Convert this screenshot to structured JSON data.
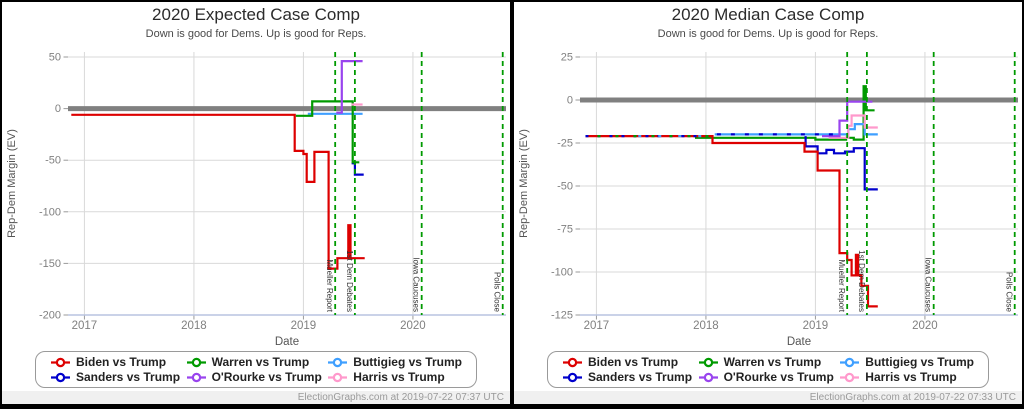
{
  "legend": {
    "items": [
      {
        "label": "Biden vs Trump",
        "color": "#dd0000"
      },
      {
        "label": "Sanders vs Trump",
        "color": "#0000cc"
      },
      {
        "label": "Warren vs Trump",
        "color": "#009a00"
      },
      {
        "label": "O'Rourke vs Trump",
        "color": "#9944ee"
      },
      {
        "label": "Buttigieg vs Trump",
        "color": "#3f9fff"
      },
      {
        "label": "Harris vs Trump",
        "color": "#ff99cc"
      }
    ]
  },
  "colors": {
    "event_line": "#009a00",
    "zero_line": "#808080",
    "grid": "#d9d9d9",
    "axis_line": "#b9c4e0",
    "tick_text": "#808080",
    "axis_title_text": "#555555",
    "event_label_text": "#333333"
  },
  "events": [
    {
      "t": 2019.29,
      "label": "Mueller Report"
    },
    {
      "t": 2019.47,
      "label": "1st Dem Debates"
    },
    {
      "t": 2020.08,
      "label": "Iowa Caucuses"
    },
    {
      "t": 2020.82,
      "label": "Polls Close"
    }
  ],
  "chart_data": [
    {
      "type": "line",
      "title": "2020 Expected Case Comp",
      "subtitle": "Down is good for Dems. Up is good for Reps.",
      "footer": "ElectionGraphs.com at 2019-07-22 07:37 UTC",
      "xlabel": "Date",
      "ylabel": "Rep-Dem Margin (EV)",
      "xticks": [
        2017,
        2018,
        2019,
        2020
      ],
      "yticks": [
        50,
        0,
        -50,
        -100,
        -150,
        -200
      ],
      "xlim": [
        2016.85,
        2020.85
      ],
      "ylim": [
        -200,
        50
      ],
      "zero_line": 0,
      "series": [
        {
          "key": "sanders",
          "name": "Sanders vs Trump",
          "color": "#0000cc",
          "points": [
            [
              2019.44,
              -53
            ],
            [
              2019.47,
              -53
            ],
            [
              2019.47,
              -64
            ],
            [
              2019.55,
              -64
            ]
          ]
        },
        {
          "key": "buttigieg",
          "name": "Buttigieg vs Trump",
          "color": "#3f9fff",
          "points": [
            [
              2019.04,
              -5
            ],
            [
              2019.54,
              -5
            ]
          ]
        },
        {
          "key": "warren",
          "name": "Warren vs Trump",
          "color": "#009a00",
          "points": [
            [
              2018.93,
              -7
            ],
            [
              2019.08,
              -7
            ],
            [
              2019.08,
              7
            ],
            [
              2019.45,
              7
            ],
            [
              2019.45,
              -52
            ],
            [
              2019.51,
              -52
            ]
          ]
        },
        {
          "key": "orourke",
          "name": "O'Rourke vs Trump",
          "color": "#9944ee",
          "points": [
            [
              2019.3,
              -4
            ],
            [
              2019.35,
              -4
            ],
            [
              2019.35,
              46
            ],
            [
              2019.54,
              46
            ]
          ]
        },
        {
          "key": "harris",
          "name": "Harris vs Trump",
          "color": "#ff99cc",
          "points": [
            [
              2019.44,
              4
            ],
            [
              2019.54,
              4
            ]
          ]
        },
        {
          "key": "biden",
          "name": "Biden vs Trump",
          "color": "#dd0000",
          "points": [
            [
              2016.88,
              -6
            ],
            [
              2018.92,
              -6
            ],
            [
              2018.92,
              -41
            ],
            [
              2019.0,
              -41
            ],
            [
              2019.0,
              -44
            ],
            [
              2019.03,
              -44
            ],
            [
              2019.03,
              -71
            ],
            [
              2019.1,
              -71
            ],
            [
              2019.1,
              -42
            ],
            [
              2019.23,
              -42
            ],
            [
              2019.23,
              -155
            ],
            [
              2019.31,
              -155
            ],
            [
              2019.31,
              -145
            ],
            [
              2019.41,
              -145
            ],
            [
              2019.41,
              -113
            ],
            [
              2019.43,
              -113
            ],
            [
              2019.43,
              -145
            ],
            [
              2019.56,
              -145
            ]
          ]
        }
      ],
      "overlays": []
    },
    {
      "type": "line",
      "title": "2020 Median Case Comp",
      "subtitle": "Down is good for Dems. Up is good for Reps.",
      "footer": "ElectionGraphs.com at 2019-07-22 07:33 UTC",
      "xlabel": "Date",
      "ylabel": "Rep-Dem Margin (EV)",
      "xticks": [
        2017,
        2018,
        2019,
        2020
      ],
      "yticks": [
        25,
        0,
        -25,
        -50,
        -75,
        -100,
        -125
      ],
      "xlim": [
        2016.85,
        2020.85
      ],
      "ylim": [
        -125,
        25
      ],
      "zero_line": 0,
      "series": [
        {
          "key": "warren",
          "name": "Warren vs Trump",
          "color": "#009a00",
          "points": [
            [
              2017.9,
              -22
            ],
            [
              2019.0,
              -22
            ],
            [
              2019.0,
              -23
            ],
            [
              2019.28,
              -23
            ],
            [
              2019.28,
              -22
            ],
            [
              2019.35,
              -22
            ],
            [
              2019.35,
              -23
            ],
            [
              2019.44,
              -23
            ],
            [
              2019.44,
              8
            ],
            [
              2019.46,
              8
            ],
            [
              2019.46,
              -6
            ],
            [
              2019.54,
              -6
            ]
          ]
        },
        {
          "key": "buttigieg",
          "name": "Buttigieg vs Trump",
          "color": "#3f9fff",
          "points": [
            [
              2018.08,
              -20
            ],
            [
              2019.3,
              -20
            ],
            [
              2019.3,
              -17
            ],
            [
              2019.36,
              -17
            ],
            [
              2019.36,
              -14
            ],
            [
              2019.45,
              -14
            ],
            [
              2019.45,
              -20
            ],
            [
              2019.57,
              -20
            ]
          ]
        },
        {
          "key": "harris",
          "name": "Harris vs Trump",
          "color": "#ff99cc",
          "points": [
            [
              2019.12,
              -22
            ],
            [
              2019.3,
              -22
            ],
            [
              2019.3,
              -15
            ],
            [
              2019.33,
              -15
            ],
            [
              2019.33,
              -9
            ],
            [
              2019.45,
              -9
            ],
            [
              2019.45,
              -16
            ],
            [
              2019.57,
              -16
            ]
          ]
        },
        {
          "key": "orourke",
          "name": "O'Rourke vs Trump",
          "color": "#9944ee",
          "points": [
            [
              2019.06,
              -21
            ],
            [
              2019.22,
              -21
            ],
            [
              2019.22,
              -12
            ],
            [
              2019.29,
              -12
            ],
            [
              2019.29,
              -1
            ],
            [
              2019.52,
              -1
            ]
          ]
        },
        {
          "key": "sanders",
          "name": "Sanders vs Trump",
          "color": "#0000cc",
          "points": [
            [
              2018.91,
              -21
            ],
            [
              2018.91,
              -27
            ],
            [
              2019.02,
              -27
            ],
            [
              2019.02,
              -31
            ],
            [
              2019.1,
              -31
            ],
            [
              2019.1,
              -29
            ],
            [
              2019.17,
              -29
            ],
            [
              2019.17,
              -31
            ],
            [
              2019.27,
              -31
            ],
            [
              2019.27,
              -30
            ],
            [
              2019.35,
              -30
            ],
            [
              2019.35,
              -28
            ],
            [
              2019.45,
              -28
            ],
            [
              2019.45,
              -52
            ],
            [
              2019.57,
              -52
            ]
          ]
        },
        {
          "key": "biden",
          "name": "Biden vs Trump",
          "color": "#dd0000",
          "points": [
            [
              2016.9,
              -21
            ],
            [
              2018.06,
              -21
            ],
            [
              2018.06,
              -25
            ],
            [
              2018.9,
              -25
            ],
            [
              2018.9,
              -30
            ],
            [
              2019.02,
              -30
            ],
            [
              2019.02,
              -41
            ],
            [
              2019.22,
              -41
            ],
            [
              2019.22,
              -89
            ],
            [
              2019.29,
              -89
            ],
            [
              2019.29,
              -93
            ],
            [
              2019.33,
              -93
            ],
            [
              2019.33,
              -102
            ],
            [
              2019.37,
              -102
            ],
            [
              2019.37,
              -90
            ],
            [
              2019.39,
              -90
            ],
            [
              2019.39,
              -102
            ],
            [
              2019.42,
              -102
            ],
            [
              2019.42,
              -108
            ],
            [
              2019.48,
              -108
            ],
            [
              2019.48,
              -120
            ],
            [
              2019.57,
              -120
            ]
          ]
        }
      ],
      "overlays": [
        {
          "color": "#0000cc",
          "value": -21,
          "t1": 2016.9,
          "t2": 2018.06,
          "dash": "3 9",
          "offset": 0
        },
        {
          "color": "#009a00",
          "value": -21,
          "t1": 2016.9,
          "t2": 2018.06,
          "dash": "3 15",
          "offset": 6
        },
        {
          "color": "#3f9fff",
          "value": -21,
          "t1": 2017.3,
          "t2": 2018.06,
          "dash": "3 17",
          "offset": 11
        },
        {
          "color": "#0000cc",
          "value": -20,
          "t1": 2018.1,
          "t2": 2019.22,
          "dash": "4 10",
          "offset": 0
        }
      ]
    }
  ]
}
